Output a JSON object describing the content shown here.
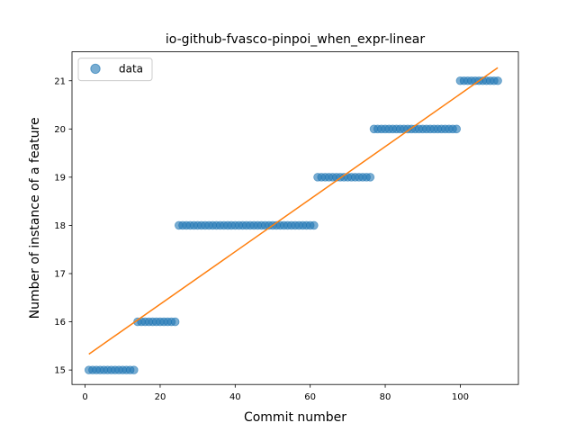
{
  "chart_data": {
    "type": "scatter",
    "title": "io-github-fvasco-pinpoi_when_expr-linear",
    "xlabel": "Commit number",
    "ylabel": "Number of instance of a feature",
    "xlim": [
      -3.5,
      115.5
    ],
    "ylim": [
      14.7,
      21.6
    ],
    "xticks": [
      0,
      20,
      40,
      60,
      80,
      100
    ],
    "yticks": [
      15,
      16,
      17,
      18,
      19,
      20,
      21
    ],
    "grid": false,
    "legend": {
      "entries": [
        "data"
      ],
      "placement": "top-left"
    },
    "series": [
      {
        "name": "data",
        "color": "#1f77b4",
        "marker": "circle",
        "alpha": 0.6,
        "segments": [
          {
            "x_start": 1,
            "x_end": 13,
            "y": 15
          },
          {
            "x_start": 14,
            "x_end": 24,
            "y": 16
          },
          {
            "x_start": 25,
            "x_end": 61,
            "y": 18
          },
          {
            "x_start": 62,
            "x_end": 76,
            "y": 19
          },
          {
            "x_start": 77,
            "x_end": 99,
            "y": 20
          },
          {
            "x_start": 100,
            "x_end": 110,
            "y": 21
          }
        ]
      },
      {
        "color": "#ff7f0e",
        "type": "line",
        "points": [
          [
            1,
            15.33
          ],
          [
            110,
            21.27
          ]
        ]
      }
    ]
  }
}
